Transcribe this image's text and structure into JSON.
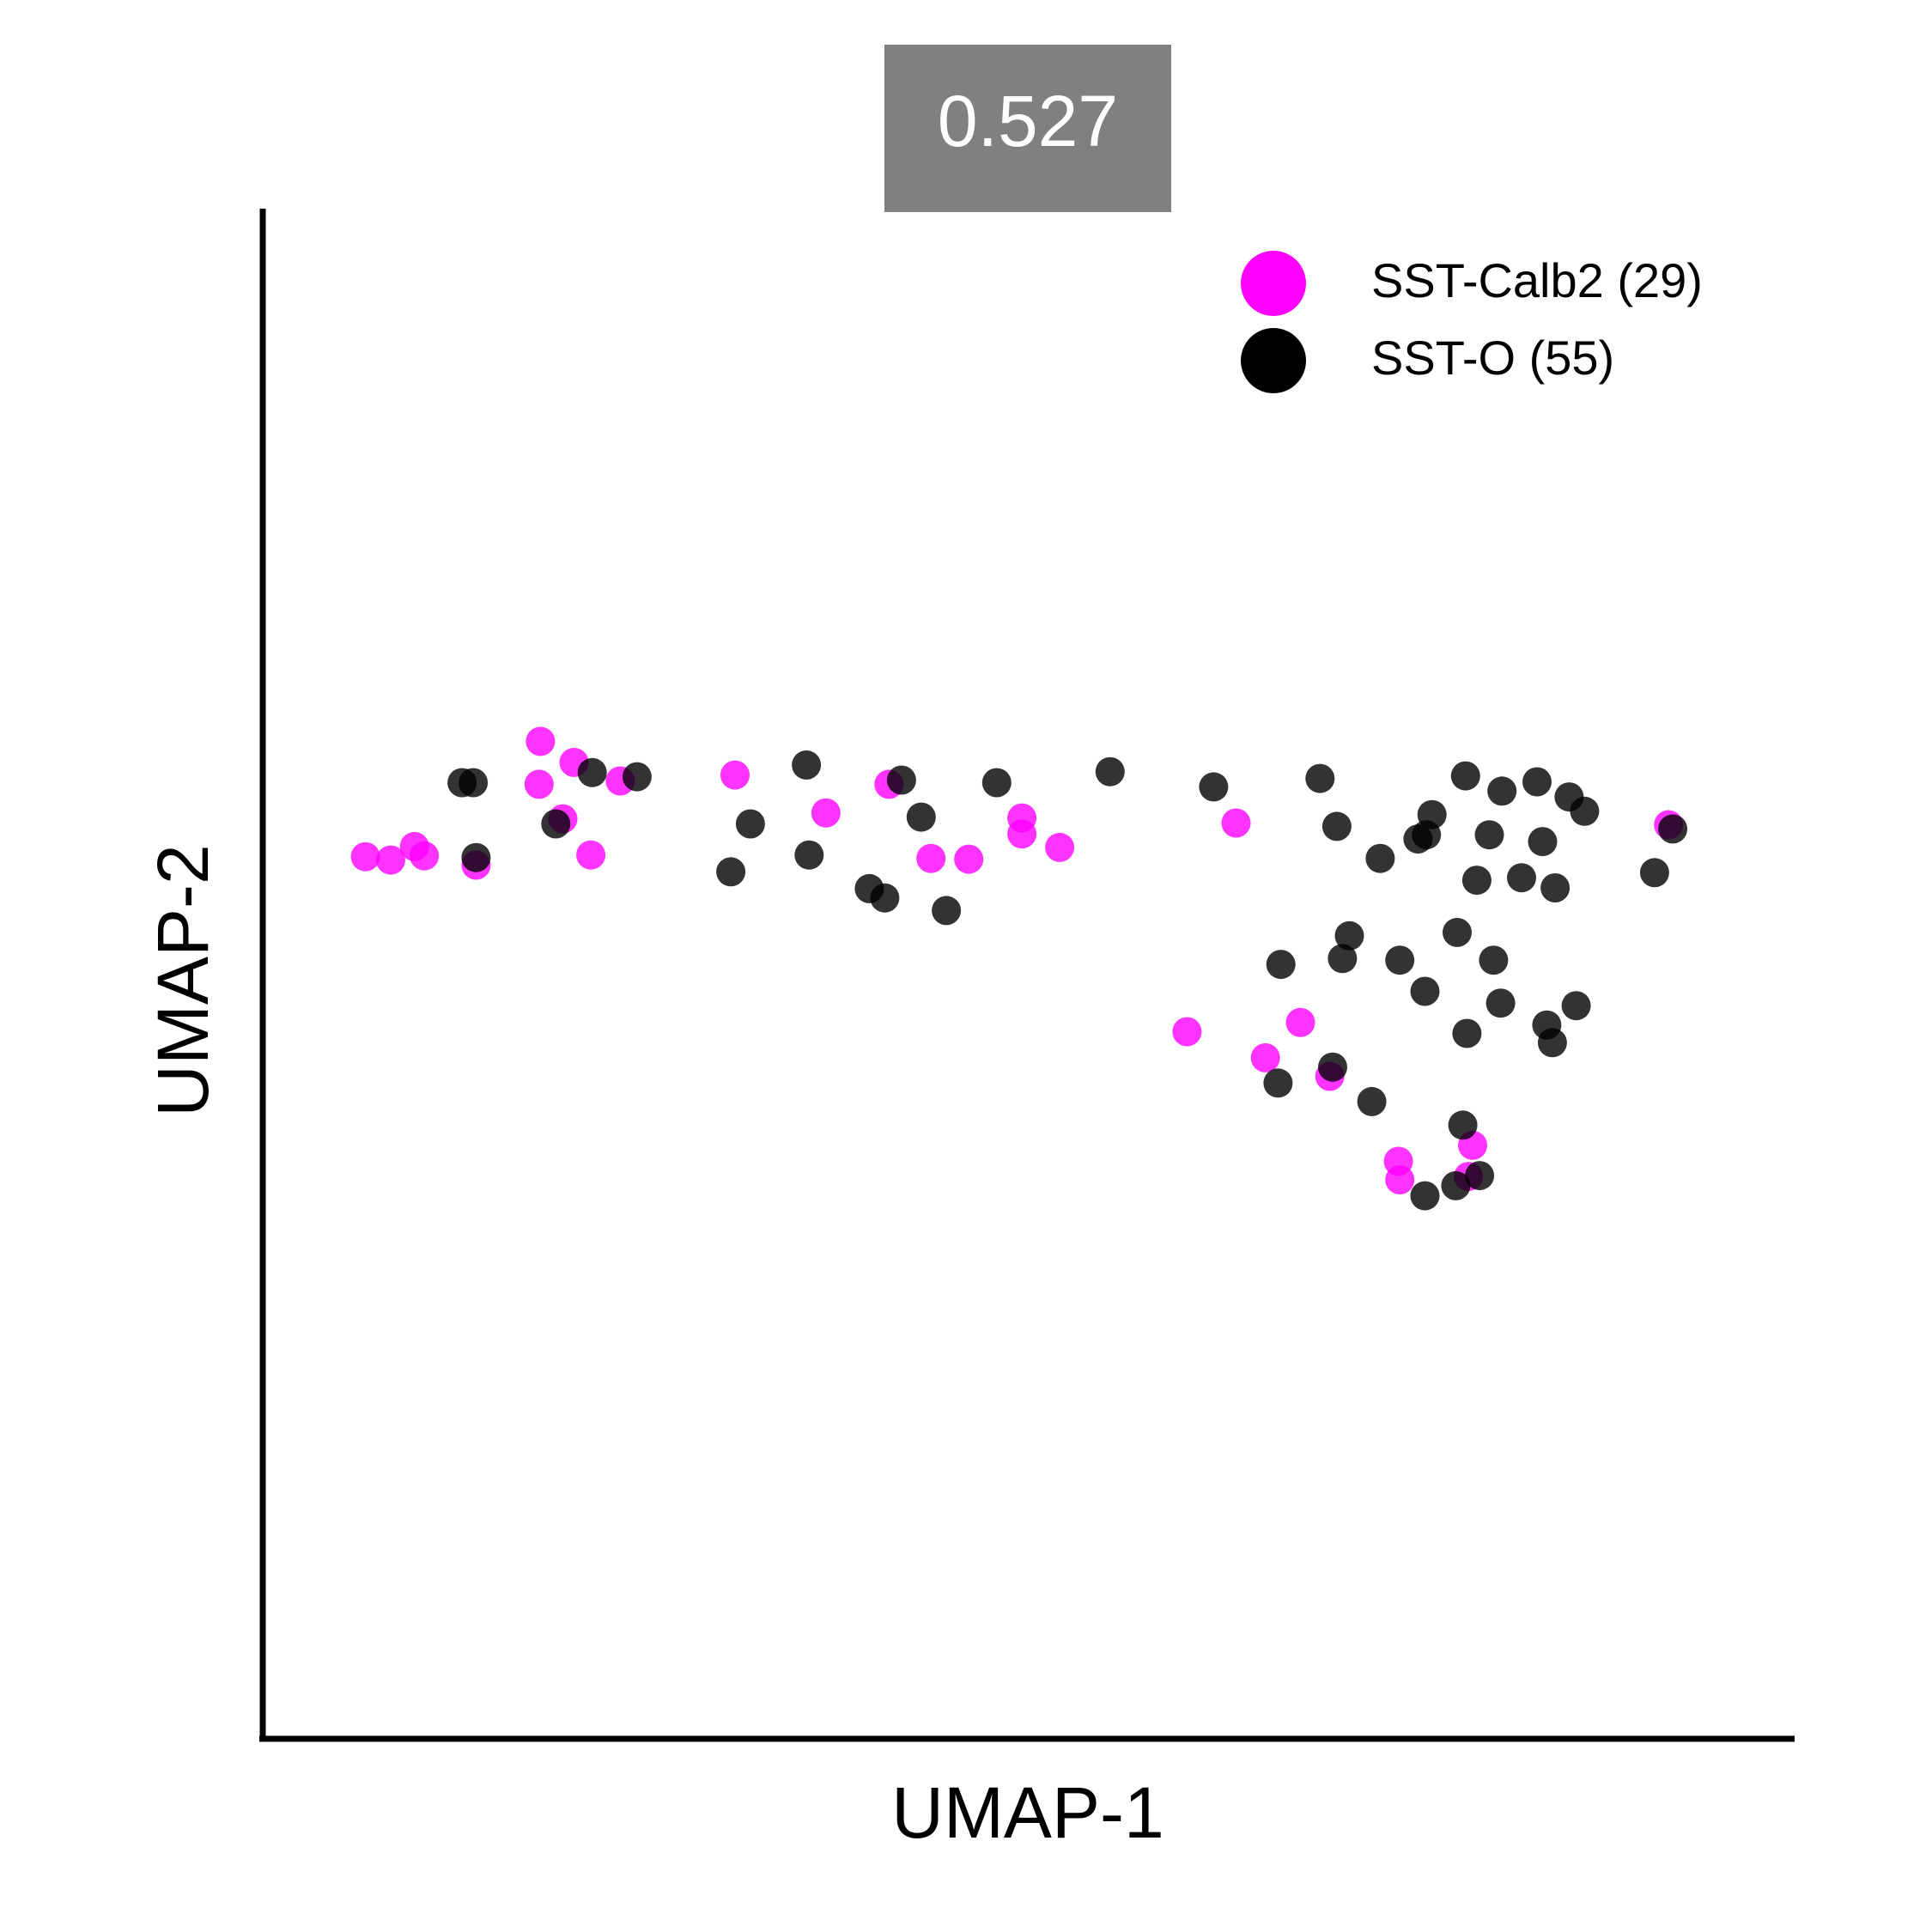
{
  "chart_data": {
    "type": "scatter",
    "title": "0.527",
    "xlabel": "UMAP-1",
    "ylabel": "UMAP-2",
    "xlim": [
      0,
      100
    ],
    "ylim": [
      0,
      100
    ],
    "grid": false,
    "legend_position": "top-right",
    "series": [
      {
        "name": "SST-Calb2 (29)",
        "color": "#ff00ff",
        "points": [
          [
            15.3,
            77.2
          ],
          [
            17.7,
            74.7
          ],
          [
            15.2,
            72.1
          ],
          [
            16.9,
            68.0
          ],
          [
            18.9,
            63.7
          ],
          [
            21.0,
            72.5
          ],
          [
            7.0,
            63.6
          ],
          [
            6.3,
            64.7
          ],
          [
            4.6,
            63.1
          ],
          [
            2.8,
            63.5
          ],
          [
            10.7,
            62.5
          ],
          [
            29.2,
            73.2
          ],
          [
            35.7,
            68.7
          ],
          [
            40.2,
            72.1
          ],
          [
            49.7,
            68.1
          ],
          [
            49.7,
            66.2
          ],
          [
            45.9,
            63.2
          ],
          [
            52.4,
            64.6
          ],
          [
            43.2,
            63.3
          ],
          [
            65.0,
            67.5
          ],
          [
            95.9,
            67.3
          ],
          [
            61.5,
            42.7
          ],
          [
            67.1,
            39.6
          ],
          [
            69.6,
            43.8
          ],
          [
            71.7,
            37.4
          ],
          [
            76.6,
            27.3
          ],
          [
            76.7,
            25.1
          ],
          [
            81.9,
            29.2
          ],
          [
            81.6,
            25.5
          ]
        ]
      },
      {
        "name": "SST-O (55)",
        "color": "#000000",
        "points": [
          [
            9.7,
            72.3
          ],
          [
            10.5,
            72.3
          ],
          [
            16.4,
            67.4
          ],
          [
            10.7,
            63.4
          ],
          [
            19.0,
            73.5
          ],
          [
            22.2,
            73.0
          ],
          [
            34.3,
            74.4
          ],
          [
            30.3,
            67.4
          ],
          [
            28.9,
            61.7
          ],
          [
            34.5,
            63.7
          ],
          [
            38.8,
            59.7
          ],
          [
            39.9,
            58.6
          ],
          [
            41.1,
            72.6
          ],
          [
            42.5,
            68.2
          ],
          [
            44.3,
            57.1
          ],
          [
            47.9,
            72.3
          ],
          [
            56.0,
            73.6
          ],
          [
            63.4,
            71.8
          ],
          [
            71.0,
            72.8
          ],
          [
            72.2,
            67.1
          ],
          [
            75.3,
            63.3
          ],
          [
            78.0,
            65.6
          ],
          [
            78.6,
            66.1
          ],
          [
            79.0,
            68.5
          ],
          [
            81.4,
            73.1
          ],
          [
            82.2,
            60.7
          ],
          [
            83.1,
            66.1
          ],
          [
            84.0,
            71.3
          ],
          [
            86.5,
            72.4
          ],
          [
            85.4,
            61.0
          ],
          [
            86.9,
            65.3
          ],
          [
            87.8,
            59.8
          ],
          [
            88.8,
            70.6
          ],
          [
            89.9,
            68.9
          ],
          [
            94.9,
            61.6
          ],
          [
            96.2,
            66.8
          ],
          [
            73.1,
            54.1
          ],
          [
            72.6,
            51.4
          ],
          [
            68.2,
            50.7
          ],
          [
            76.7,
            51.2
          ],
          [
            80.8,
            54.5
          ],
          [
            83.4,
            51.2
          ],
          [
            78.5,
            47.5
          ],
          [
            83.9,
            46.1
          ],
          [
            87.2,
            43.5
          ],
          [
            89.3,
            45.8
          ],
          [
            81.5,
            42.5
          ],
          [
            87.6,
            41.4
          ],
          [
            71.9,
            38.5
          ],
          [
            68.0,
            36.6
          ],
          [
            74.7,
            34.4
          ],
          [
            81.2,
            31.6
          ],
          [
            82.4,
            25.6
          ],
          [
            80.7,
            24.4
          ],
          [
            78.5,
            23.2
          ]
        ]
      }
    ]
  }
}
